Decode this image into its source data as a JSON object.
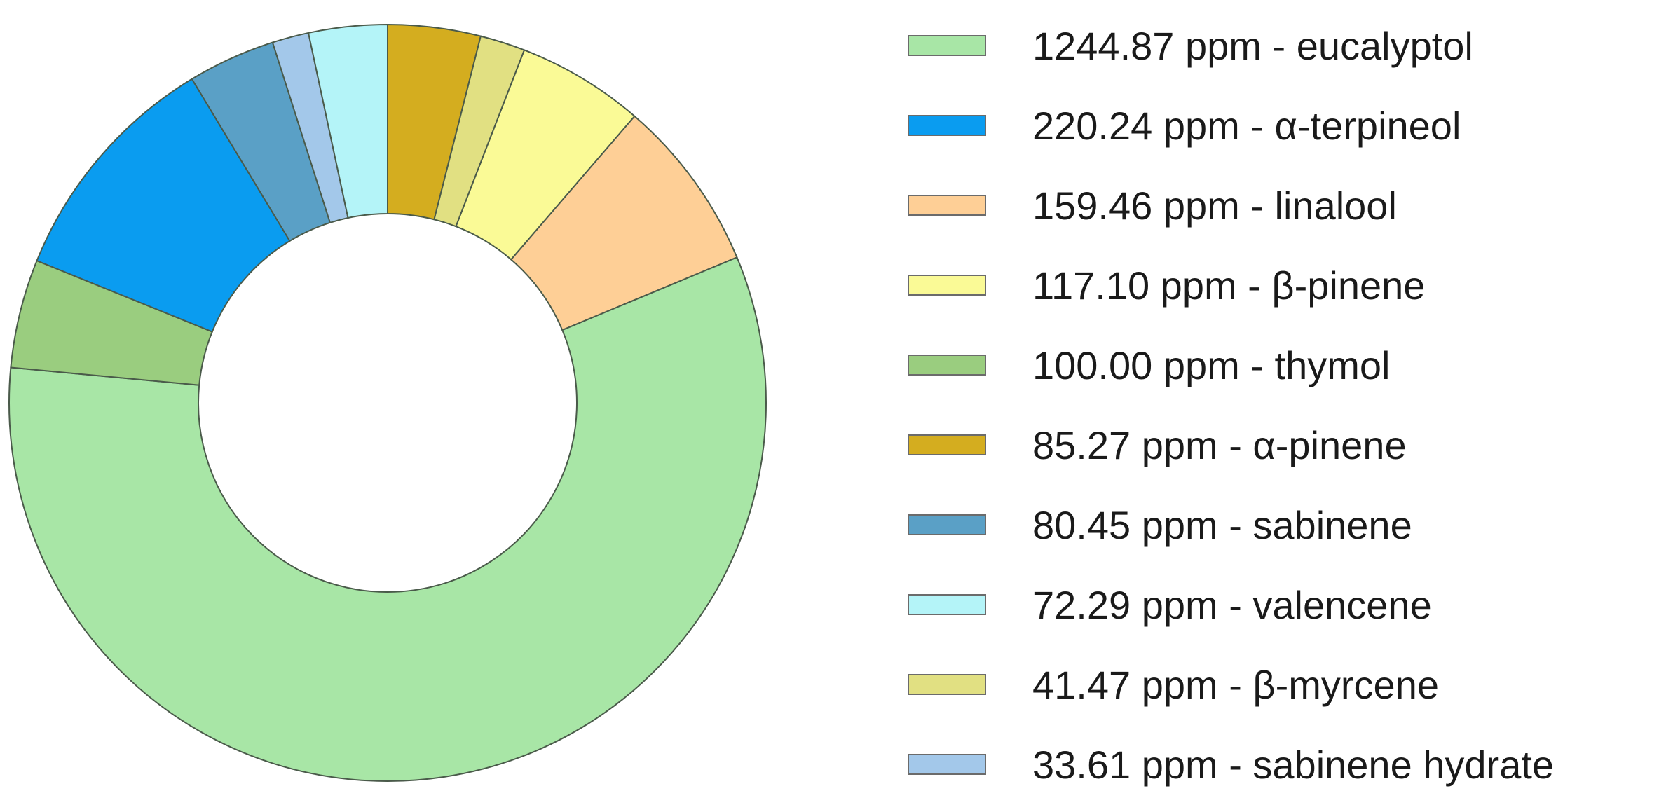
{
  "chart_data": {
    "type": "pie",
    "style": "donut",
    "start_angle_deg": 0,
    "direction": "clockwise",
    "values_unit": "ppm",
    "slices": [
      {
        "name": "eucalyptol",
        "value": 1244.87,
        "label": "1244.87 ppm - eucalyptol",
        "color": "#a8e6a6"
      },
      {
        "name": "α-terpineol",
        "value": 220.24,
        "label": "220.24 ppm - α-terpineol",
        "color": "#0a9cf0"
      },
      {
        "name": "linalool",
        "value": 159.46,
        "label": "159.46 ppm - linalool",
        "color": "#fecf96"
      },
      {
        "name": "β-pinene",
        "value": 117.1,
        "label": "117.10 ppm - β-pinene",
        "color": "#fafa96"
      },
      {
        "name": "thymol",
        "value": 100.0,
        "label": "100.00 ppm - thymol",
        "color": "#9acd7f"
      },
      {
        "name": "α-pinene",
        "value": 85.27,
        "label": "85.27 ppm - α-pinene",
        "color": "#d4ad1f"
      },
      {
        "name": "sabinene",
        "value": 80.45,
        "label": "80.45 ppm - sabinene",
        "color": "#5aa0c6"
      },
      {
        "name": "valencene",
        "value": 72.29,
        "label": "72.29 ppm - valencene",
        "color": "#b4f4f8"
      },
      {
        "name": "β-myrcene",
        "value": 41.47,
        "label": "41.47 ppm - β-myrcene",
        "color": "#e1e082"
      },
      {
        "name": "sabinene hydrate",
        "value": 33.61,
        "label": "33.61 ppm - sabinene hydrate",
        "color": "#a3c8ea"
      }
    ],
    "pie_order": [
      "α-pinene",
      "β-myrcene",
      "β-pinene",
      "linalool",
      "eucalyptol",
      "thymol",
      "α-terpineol",
      "sabinene",
      "sabinene hydrate",
      "valencene"
    ],
    "legend_placement": "right",
    "title": "",
    "edge_color": "#4a5a4a"
  }
}
